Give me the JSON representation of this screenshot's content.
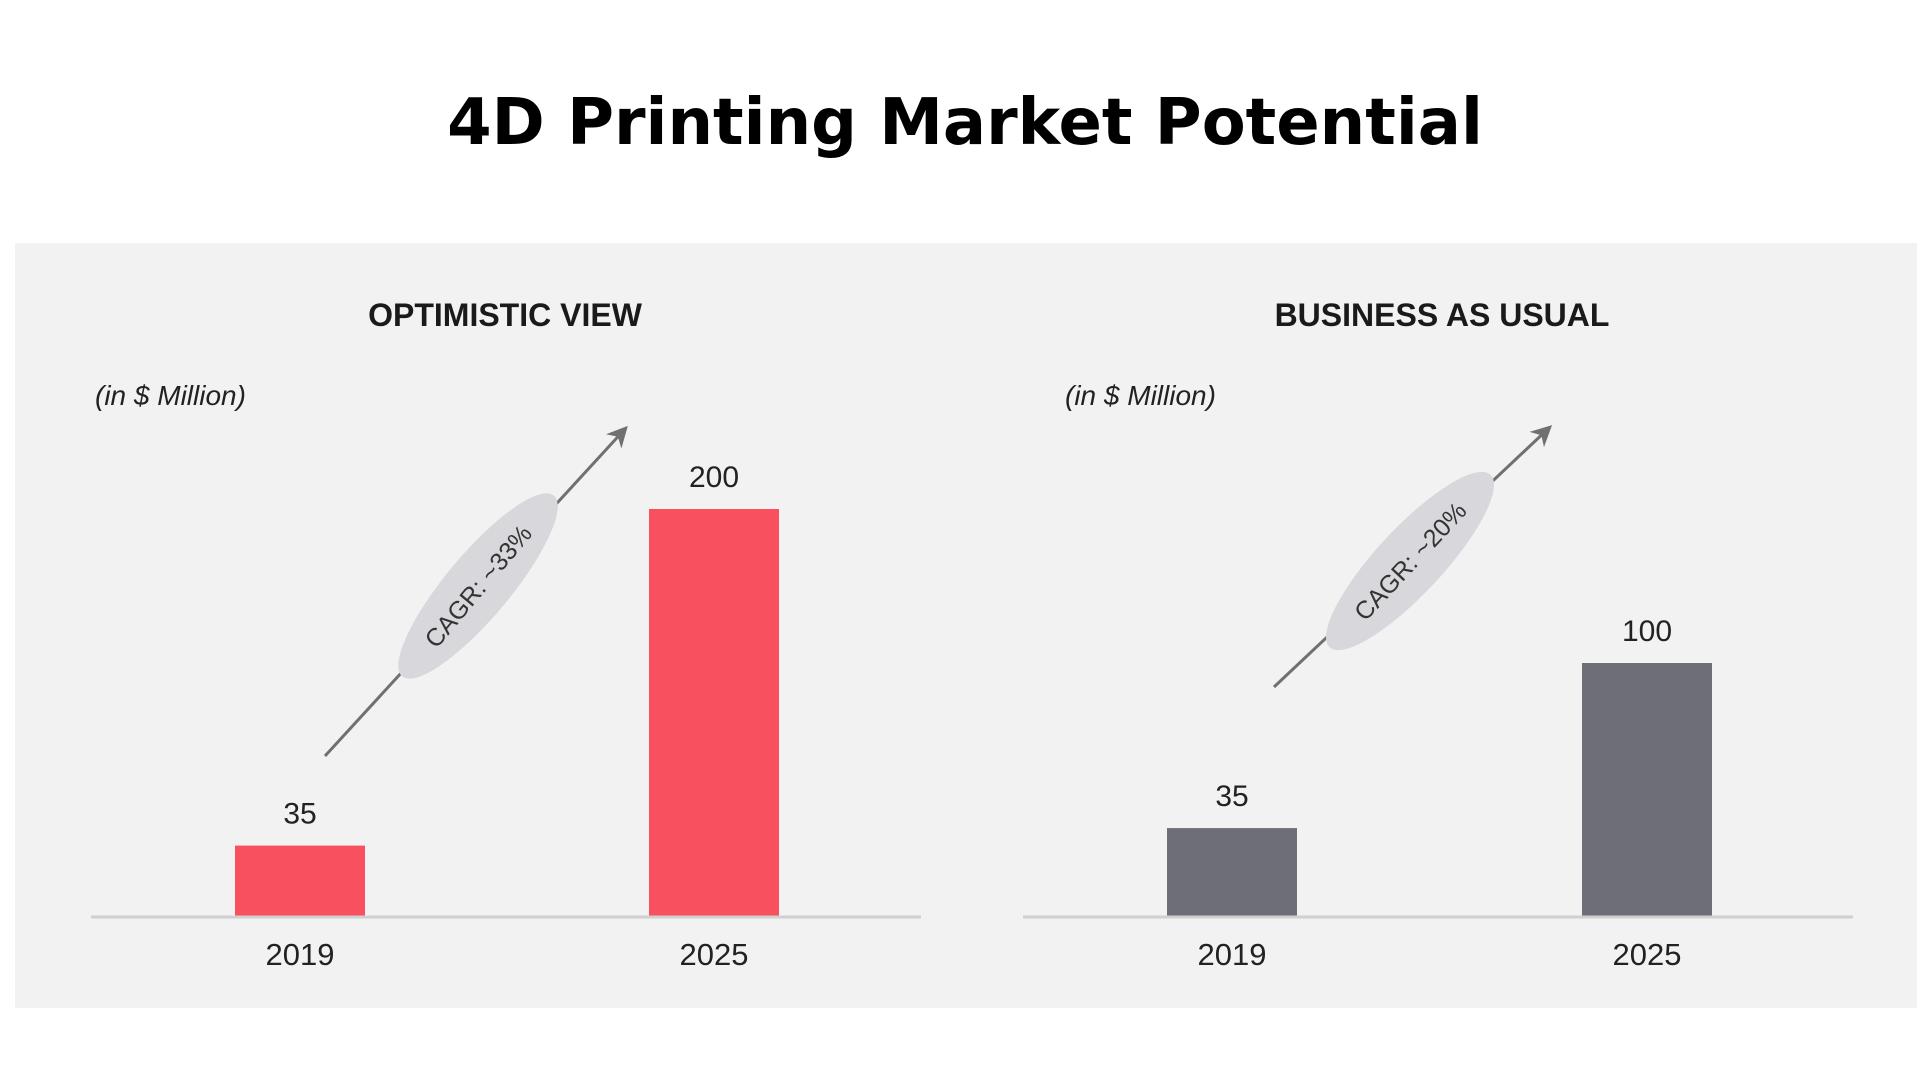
{
  "title": "4D Printing Market Potential",
  "colors": {
    "optimistic": "#f95060",
    "business_as_usual": "#6e6e76",
    "panel_bg": "#f2f2f2",
    "axis": "#d0d0d0",
    "cagr_ellipse": "#d8d8dc",
    "arrow": "#707070"
  },
  "chart_data": [
    {
      "type": "bar",
      "title": "OPTIMISTIC VIEW",
      "unit_label": "(in $ Million)",
      "categories": [
        "2019",
        "2025"
      ],
      "values": [
        35,
        200
      ],
      "value_labels": [
        "35",
        "200"
      ],
      "annotation": "CAGR: ~33%",
      "ylim": [
        0,
        200
      ],
      "grid": false
    },
    {
      "type": "bar",
      "title": "BUSINESS AS USUAL",
      "unit_label": "(in $ Million)",
      "categories": [
        "2019",
        "2025"
      ],
      "values": [
        35,
        100
      ],
      "value_labels": [
        "35",
        "100"
      ],
      "annotation": "CAGR: ~20%",
      "ylim": [
        0,
        100
      ],
      "grid": false
    }
  ]
}
